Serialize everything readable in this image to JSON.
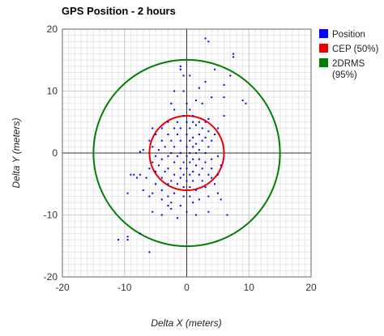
{
  "chart_data": {
    "type": "scatter",
    "title": "GPS Position - 2 hours",
    "xlabel": "Delta X (meters)",
    "ylabel": "Delta Y (meters)",
    "xlim": [
      -20,
      20
    ],
    "ylim": [
      -20,
      20
    ],
    "x_ticks": [
      -20,
      -10,
      0,
      10,
      20
    ],
    "y_ticks": [
      -20,
      -10,
      0,
      10,
      20
    ],
    "grid": true,
    "minor_grid_step": 1,
    "legend_position": "right",
    "series": [
      {
        "name": "Position",
        "type": "scatter",
        "color": "#0000ff",
        "points": [
          [
            3,
            18.5
          ],
          [
            3.5,
            18
          ],
          [
            7.5,
            16
          ],
          [
            7.5,
            15.5
          ],
          [
            -1,
            14
          ],
          [
            -1,
            13.5
          ],
          [
            4.5,
            13.5
          ],
          [
            -0.5,
            12.5
          ],
          [
            0.5,
            12.5
          ],
          [
            7,
            12.5
          ],
          [
            6,
            11
          ],
          [
            3,
            11.5
          ],
          [
            2,
            10.5
          ],
          [
            -2,
            10
          ],
          [
            -0.5,
            10
          ],
          [
            0,
            8
          ],
          [
            4,
            9
          ],
          [
            6,
            9
          ],
          [
            -2.5,
            8
          ],
          [
            9,
            8.5
          ],
          [
            9.5,
            8
          ],
          [
            1.5,
            8.5
          ],
          [
            2.5,
            8
          ],
          [
            -2,
            7
          ],
          [
            0.5,
            7
          ],
          [
            -0.5,
            6
          ],
          [
            1,
            6
          ],
          [
            3.5,
            5.5
          ],
          [
            -3,
            5
          ],
          [
            -1.5,
            5
          ],
          [
            0,
            5
          ],
          [
            1,
            5
          ],
          [
            2,
            5
          ],
          [
            3,
            5
          ],
          [
            6,
            6
          ],
          [
            -5.5,
            4
          ],
          [
            -4,
            4
          ],
          [
            -2,
            4
          ],
          [
            -1,
            4
          ],
          [
            0.5,
            4
          ],
          [
            1.5,
            4.5
          ],
          [
            2.5,
            4
          ],
          [
            3.5,
            3.5
          ],
          [
            5,
            4
          ],
          [
            4.5,
            3
          ],
          [
            -5,
            3
          ],
          [
            -3,
            3
          ],
          [
            -1.5,
            3
          ],
          [
            0,
            3
          ],
          [
            1,
            2.5
          ],
          [
            2,
            3
          ],
          [
            3,
            2.5
          ],
          [
            -6,
            2
          ],
          [
            -4,
            2
          ],
          [
            -2.5,
            2
          ],
          [
            -1,
            2
          ],
          [
            0.5,
            2
          ],
          [
            1.5,
            1.5
          ],
          [
            2.5,
            2
          ],
          [
            4,
            2
          ],
          [
            -7,
            0.5
          ],
          [
            -5.5,
            1
          ],
          [
            -3.5,
            1
          ],
          [
            -2,
            1
          ],
          [
            0,
            1
          ],
          [
            1,
            1
          ],
          [
            2,
            0.5
          ],
          [
            3.5,
            1
          ],
          [
            -7.5,
            0.2
          ],
          [
            -4.5,
            0.5
          ],
          [
            -2.5,
            0
          ],
          [
            -1,
            0
          ],
          [
            0.5,
            0
          ],
          [
            1.5,
            0
          ],
          [
            3,
            0
          ],
          [
            5,
            -0.5
          ],
          [
            -5,
            -0.5
          ],
          [
            -3,
            -0.5
          ],
          [
            -1.5,
            -0.5
          ],
          [
            0,
            -0.5
          ],
          [
            1,
            -1
          ],
          [
            2,
            -1
          ],
          [
            4,
            -1
          ],
          [
            -7.5,
            -3.5
          ],
          [
            -5.5,
            -1.5
          ],
          [
            -4,
            -1
          ],
          [
            -2,
            -1.5
          ],
          [
            -0.5,
            -1.5
          ],
          [
            0.5,
            -1.5
          ],
          [
            1.5,
            -2
          ],
          [
            3,
            -1.5
          ],
          [
            5.5,
            -2
          ],
          [
            -6,
            -2.5
          ],
          [
            -4.5,
            -2
          ],
          [
            -3,
            -2.5
          ],
          [
            -1,
            -2.5
          ],
          [
            0,
            -2.5
          ],
          [
            1,
            -3
          ],
          [
            2.5,
            -2.5
          ],
          [
            4,
            -2.5
          ],
          [
            -9,
            -3.5
          ],
          [
            -8.5,
            -3.5
          ],
          [
            -5,
            -3
          ],
          [
            -3.5,
            -3
          ],
          [
            -2,
            -3.5
          ],
          [
            -0.5,
            -3.5
          ],
          [
            0.5,
            -3.5
          ],
          [
            2,
            -3.5
          ],
          [
            3.5,
            -3.5
          ],
          [
            5,
            -3.5
          ],
          [
            -6.5,
            -4
          ],
          [
            -4,
            -4
          ],
          [
            -2.5,
            -4.5
          ],
          [
            -1,
            -4
          ],
          [
            0,
            -4.5
          ],
          [
            1,
            -4.5
          ],
          [
            2.5,
            -4.5
          ],
          [
            4,
            -4
          ],
          [
            -8,
            -4
          ],
          [
            -5,
            -5
          ],
          [
            -3,
            -5
          ],
          [
            -1.5,
            -5
          ],
          [
            -0.5,
            -5.5
          ],
          [
            0.5,
            -5.5
          ],
          [
            1.5,
            -6
          ],
          [
            3,
            -5.5
          ],
          [
            4.5,
            -5
          ],
          [
            5,
            -6.5
          ],
          [
            -9.5,
            -6.5
          ],
          [
            -7,
            -6
          ],
          [
            -5.5,
            -6.5
          ],
          [
            -4,
            -6
          ],
          [
            -3,
            -7
          ],
          [
            -2,
            -6.5
          ],
          [
            -0.5,
            -7
          ],
          [
            0.5,
            -7
          ],
          [
            2,
            -7.5
          ],
          [
            3.5,
            -7
          ],
          [
            5.5,
            -7.5
          ],
          [
            -6,
            -7
          ],
          [
            -4,
            -7.5
          ],
          [
            -2.5,
            -8
          ],
          [
            -1,
            -8.5
          ],
          [
            1,
            -8
          ],
          [
            -5.5,
            -9.5
          ],
          [
            -3,
            -8.5
          ],
          [
            -2.5,
            -9
          ],
          [
            0,
            -9.5
          ],
          [
            1.5,
            -10
          ],
          [
            3.5,
            -9.5
          ],
          [
            6.5,
            -10
          ],
          [
            -4,
            -10
          ],
          [
            -1.5,
            -10.5
          ],
          [
            -9.5,
            -13.5
          ],
          [
            -9.5,
            -14
          ],
          [
            -11,
            -14
          ],
          [
            -7.5,
            -13
          ],
          [
            -6,
            -16
          ]
        ]
      },
      {
        "name": "CEP (50%)",
        "type": "circle",
        "color": "#ee0000",
        "radius": 6
      },
      {
        "name": "2DRMS (95%)",
        "type": "circle",
        "color": "#008000",
        "radius": 15
      }
    ],
    "legend": [
      {
        "color": "#0000ff",
        "lines": [
          "Position"
        ]
      },
      {
        "color": "#ee0000",
        "lines": [
          "CEP (50%)"
        ]
      },
      {
        "color": "#008000",
        "lines": [
          "2DRMS",
          "(95%)"
        ]
      }
    ]
  }
}
